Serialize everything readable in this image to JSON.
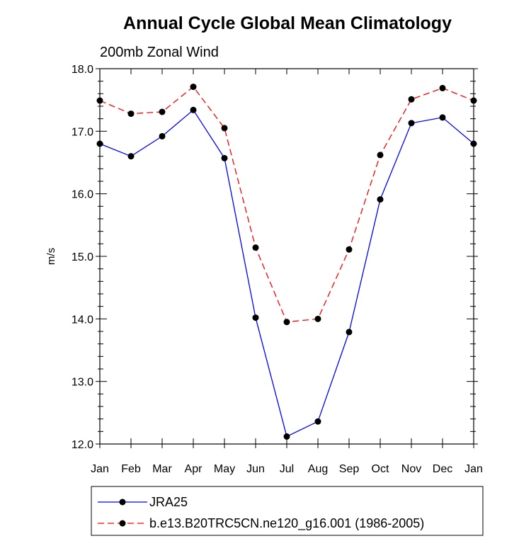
{
  "chart_data": {
    "type": "line",
    "title": "Annual Cycle Global Mean Climatology",
    "subtitle": "200mb Zonal Wind",
    "xlabel": "",
    "ylabel": "m/s",
    "categories": [
      "Jan",
      "Feb",
      "Mar",
      "Apr",
      "May",
      "Jun",
      "Jul",
      "Aug",
      "Sep",
      "Oct",
      "Nov",
      "Dec",
      "Jan"
    ],
    "ylim": [
      12.0,
      18.0
    ],
    "yticks": [
      "12.0",
      "13.0",
      "14.0",
      "15.0",
      "16.0",
      "17.0",
      "18.0"
    ],
    "grid": false,
    "legend_position": "bottom",
    "series": [
      {
        "name": "JRA25",
        "color": "#0000ff",
        "line_style": "solid",
        "marker": "filled-circle",
        "values": [
          16.8,
          16.6,
          16.92,
          17.34,
          16.57,
          14.02,
          12.12,
          12.36,
          13.79,
          15.91,
          17.13,
          17.22,
          16.8
        ]
      },
      {
        "name": "b.e13.B20TRC5CN.ne120_g16.001 (1986-2005)",
        "color": "#ff0000",
        "line_style": "dashed",
        "marker": "filled-circle",
        "values": [
          17.49,
          17.28,
          17.31,
          17.71,
          17.05,
          15.14,
          13.95,
          14.0,
          15.11,
          16.62,
          17.51,
          17.69,
          17.49
        ]
      }
    ]
  }
}
